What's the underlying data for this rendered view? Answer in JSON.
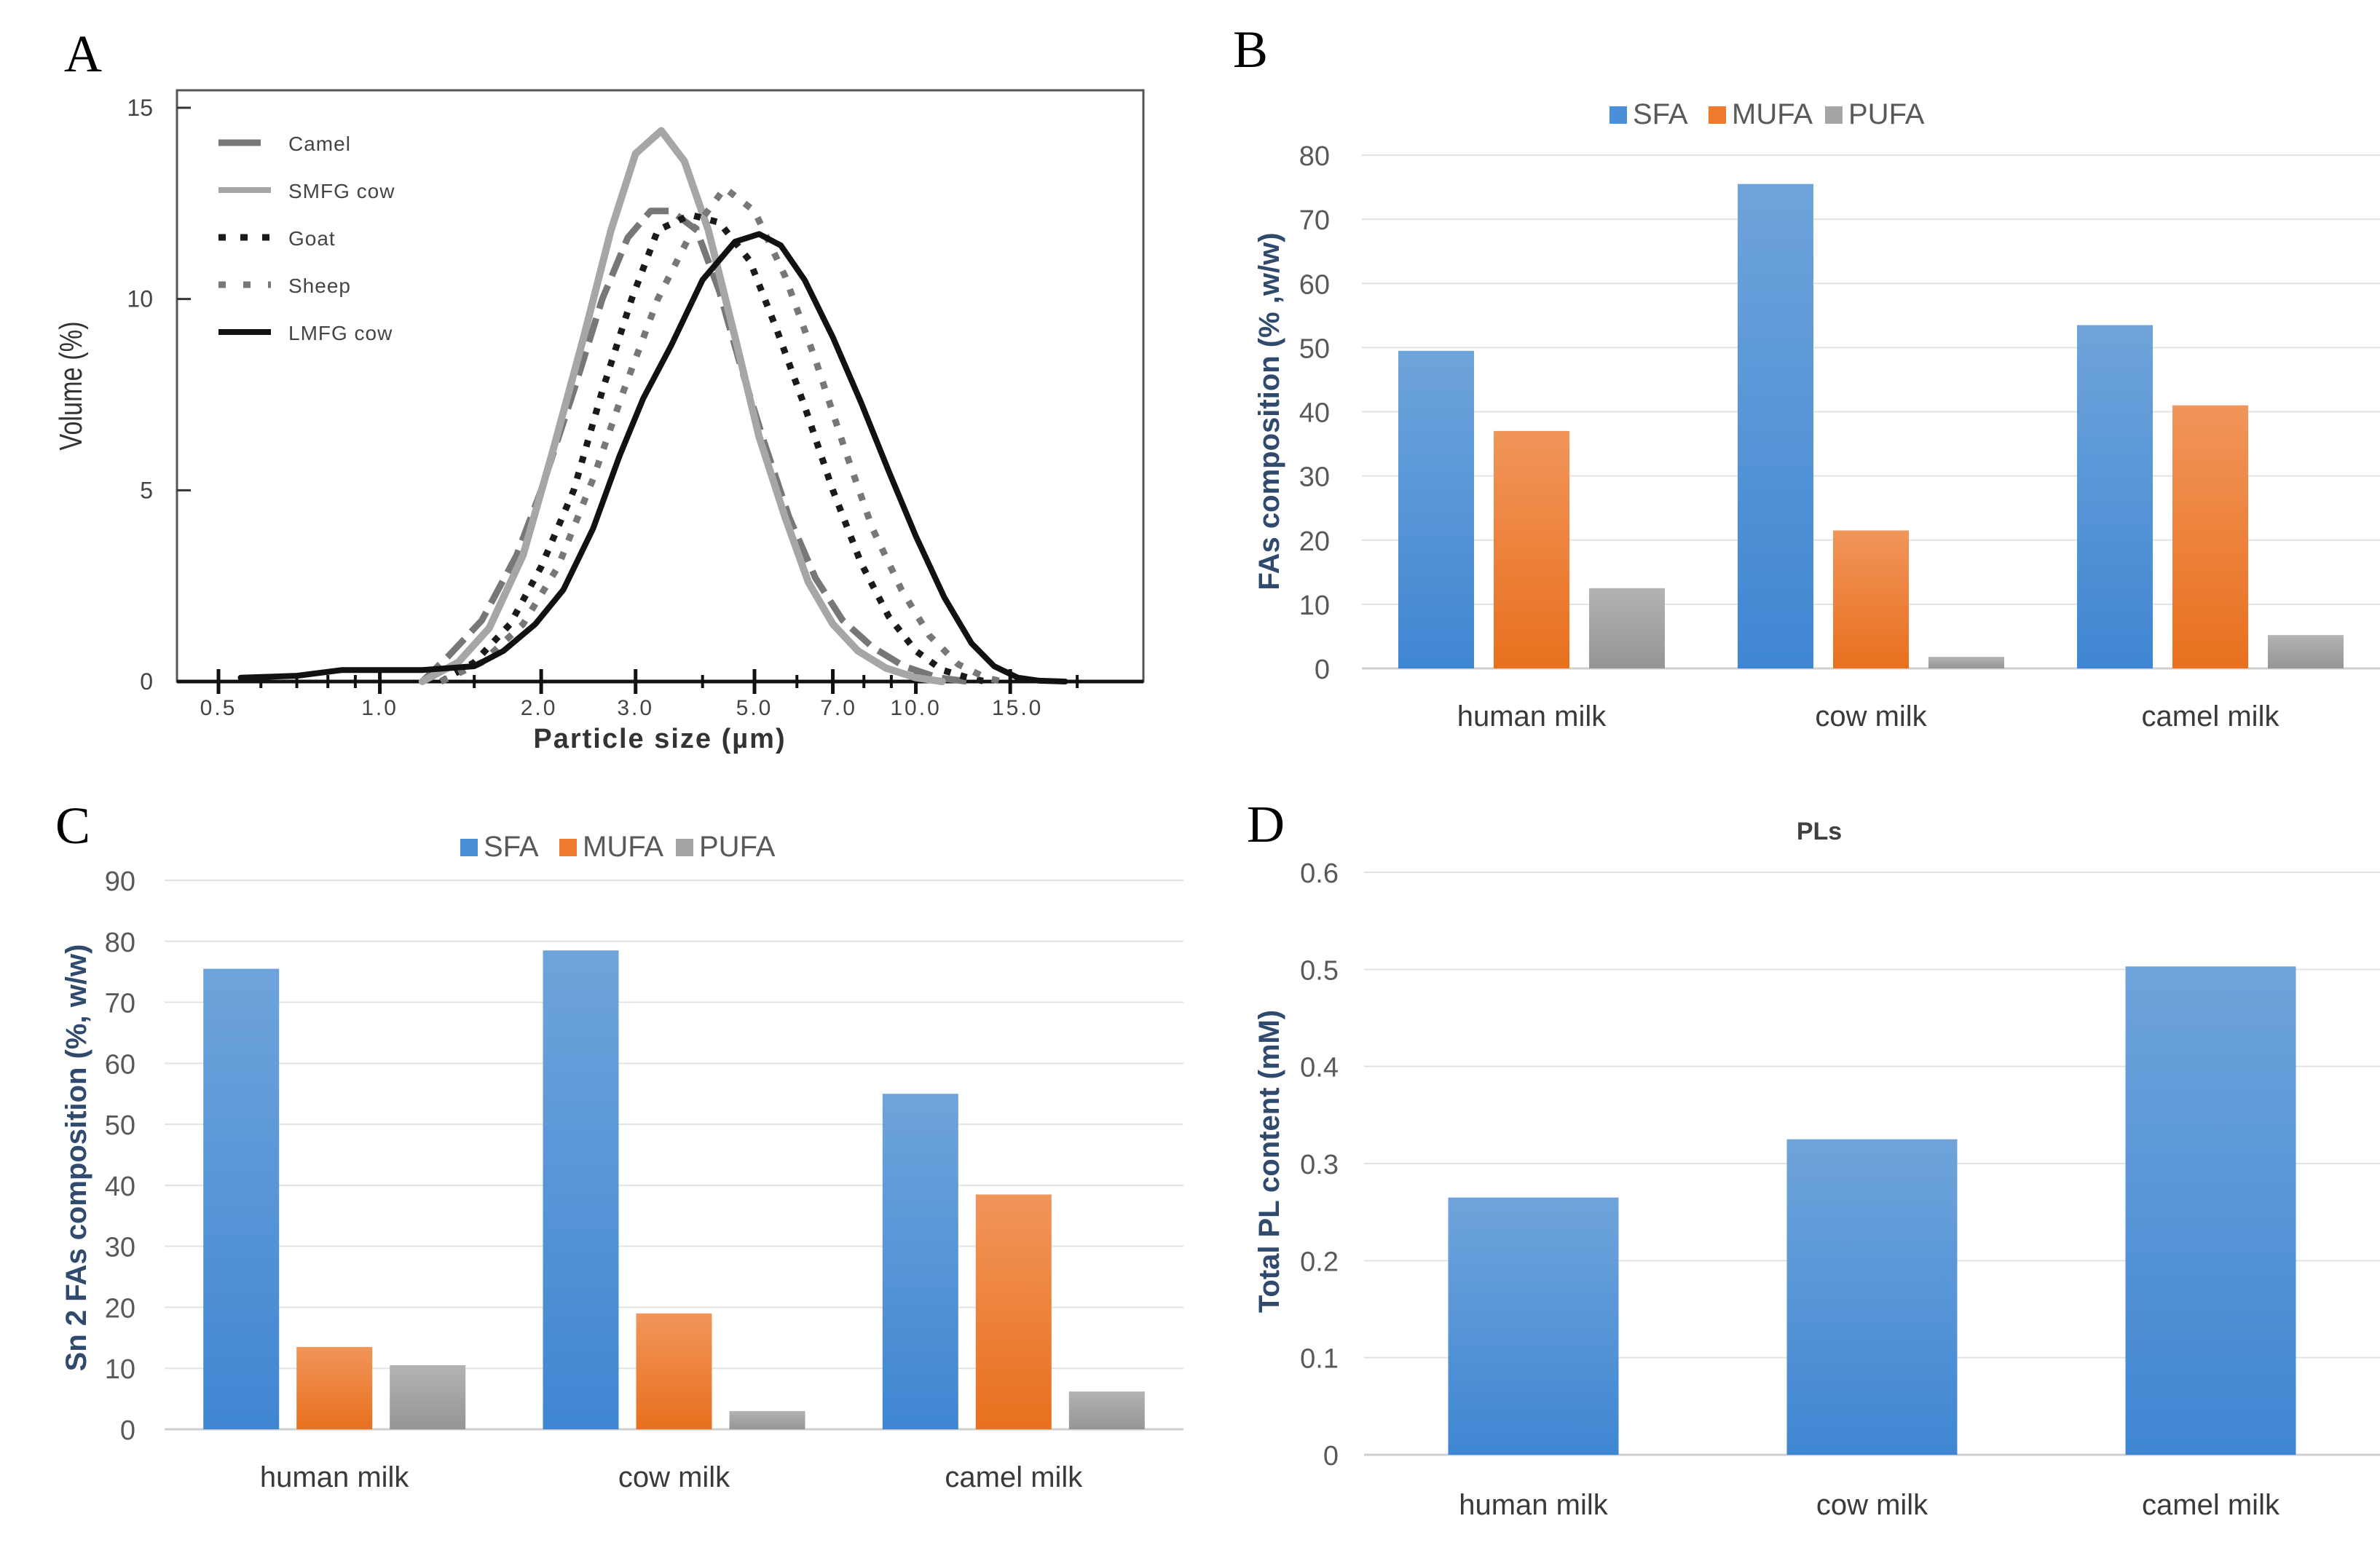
{
  "panels": {
    "A": "A",
    "B": "B",
    "C": "C",
    "D": "D"
  },
  "chart_data": [
    {
      "id": "A",
      "type": "line",
      "title": "",
      "xlabel": "Particle size (µm)",
      "ylabel": "Volume (%)",
      "xscale": "log",
      "xlim": [
        0.4,
        25
      ],
      "ylim": [
        0,
        15
      ],
      "xticks": [
        0.5,
        1.0,
        2.0,
        3.0,
        5.0,
        7.0,
        10.0,
        15.0
      ],
      "xtick_labels": [
        "0.5",
        "1.0",
        "2.0",
        "3.0",
        "5.0",
        "7.0",
        "10.0",
        "15.0"
      ],
      "yticks": [
        0,
        5,
        10,
        15
      ],
      "ytick_labels": [
        "0",
        "5",
        "10",
        "15"
      ],
      "legend_position": "top-left",
      "series": [
        {
          "name": "Camel",
          "color": "#777777",
          "style": "long-dash",
          "points": [
            [
              1.2,
              0
            ],
            [
              1.35,
              0.7
            ],
            [
              1.55,
              1.6
            ],
            [
              1.8,
              3.3
            ],
            [
              2.0,
              5.0
            ],
            [
              2.3,
              7.6
            ],
            [
              2.6,
              10.0
            ],
            [
              2.9,
              11.6
            ],
            [
              3.2,
              12.3
            ],
            [
              3.5,
              12.3
            ],
            [
              3.9,
              11.8
            ],
            [
              4.3,
              10.2
            ],
            [
              4.7,
              8.3
            ],
            [
              5.2,
              6.3
            ],
            [
              5.8,
              4.3
            ],
            [
              6.5,
              2.7
            ],
            [
              7.3,
              1.6
            ],
            [
              8.3,
              0.9
            ],
            [
              9.5,
              0.4
            ],
            [
              11,
              0.1
            ],
            [
              12.5,
              0
            ]
          ]
        },
        {
          "name": "SMFG cow",
          "color": "#a6a6a6",
          "style": "solid",
          "points": [
            [
              1.2,
              0
            ],
            [
              1.4,
              0.5
            ],
            [
              1.6,
              1.4
            ],
            [
              1.85,
              3.3
            ],
            [
              2.1,
              6.0
            ],
            [
              2.4,
              9.0
            ],
            [
              2.7,
              11.8
            ],
            [
              3.0,
              13.8
            ],
            [
              3.35,
              14.4
            ],
            [
              3.7,
              13.6
            ],
            [
              4.1,
              11.8
            ],
            [
              4.6,
              9.0
            ],
            [
              5.1,
              6.4
            ],
            [
              5.7,
              4.3
            ],
            [
              6.3,
              2.6
            ],
            [
              7.0,
              1.5
            ],
            [
              7.8,
              0.8
            ],
            [
              8.8,
              0.35
            ],
            [
              10,
              0.1
            ],
            [
              11.2,
              0
            ]
          ]
        },
        {
          "name": "Goat",
          "color": "#1a1a1a",
          "style": "dotted",
          "points": [
            [
              1.3,
              0
            ],
            [
              1.5,
              0.5
            ],
            [
              1.75,
              1.5
            ],
            [
              2.0,
              3.0
            ],
            [
              2.3,
              5.0
            ],
            [
              2.6,
              7.6
            ],
            [
              2.95,
              10.0
            ],
            [
              3.3,
              11.8
            ],
            [
              3.8,
              12.2
            ],
            [
              4.3,
              12.0
            ],
            [
              4.9,
              11.0
            ],
            [
              5.5,
              9.2
            ],
            [
              6.2,
              7.2
            ],
            [
              7.0,
              5.0
            ],
            [
              7.9,
              3.1
            ],
            [
              8.9,
              1.7
            ],
            [
              10,
              0.8
            ],
            [
              11.2,
              0.3
            ],
            [
              12.5,
              0.1
            ],
            [
              13.5,
              0
            ]
          ]
        },
        {
          "name": "Sheep",
          "color": "#777777",
          "style": "square-dot",
          "points": [
            [
              1.3,
              0
            ],
            [
              1.55,
              0.5
            ],
            [
              1.85,
              1.5
            ],
            [
              2.15,
              3.0
            ],
            [
              2.5,
              5.3
            ],
            [
              2.85,
              7.6
            ],
            [
              3.3,
              10.0
            ],
            [
              3.8,
              11.7
            ],
            [
              4.4,
              12.9
            ],
            [
              5.0,
              12.3
            ],
            [
              5.7,
              10.6
            ],
            [
              6.5,
              8.4
            ],
            [
              7.4,
              6.0
            ],
            [
              8.3,
              4.0
            ],
            [
              9.4,
              2.4
            ],
            [
              10.6,
              1.2
            ],
            [
              12,
              0.45
            ],
            [
              13.5,
              0.1
            ],
            [
              14.5,
              0
            ]
          ]
        },
        {
          "name": "LMFG cow",
          "color": "#111111",
          "style": "solid",
          "points": [
            [
              0.55,
              0.1
            ],
            [
              0.7,
              0.15
            ],
            [
              0.85,
              0.3
            ],
            [
              1.0,
              0.3
            ],
            [
              1.2,
              0.3
            ],
            [
              1.5,
              0.4
            ],
            [
              1.7,
              0.8
            ],
            [
              1.95,
              1.5
            ],
            [
              2.2,
              2.4
            ],
            [
              2.5,
              4.0
            ],
            [
              2.8,
              5.9
            ],
            [
              3.1,
              7.4
            ],
            [
              3.5,
              8.8
            ],
            [
              4.0,
              10.5
            ],
            [
              4.6,
              11.5
            ],
            [
              5.1,
              11.7
            ],
            [
              5.6,
              11.4
            ],
            [
              6.2,
              10.5
            ],
            [
              7.0,
              9.0
            ],
            [
              7.9,
              7.3
            ],
            [
              8.9,
              5.5
            ],
            [
              10,
              3.8
            ],
            [
              11.3,
              2.2
            ],
            [
              12.7,
              1.0
            ],
            [
              14.0,
              0.4
            ],
            [
              15.5,
              0.1
            ],
            [
              17,
              0.02
            ],
            [
              19,
              0
            ]
          ]
        }
      ]
    },
    {
      "id": "B",
      "type": "bar",
      "title": "",
      "xlabel": "",
      "ylabel": "FAs composition (% ,w/w)",
      "ylim": [
        0,
        80
      ],
      "yticks": [
        0,
        10,
        20,
        30,
        40,
        50,
        60,
        70,
        80
      ],
      "legend_position": "top-center",
      "categories": [
        "human milk",
        "cow milk",
        "camel milk"
      ],
      "series": [
        {
          "name": "SFA",
          "color": "#4a8fd8",
          "values": [
            49.5,
            75.5,
            53.5
          ]
        },
        {
          "name": "MUFA",
          "color": "#ef7b2e",
          "values": [
            37,
            21.5,
            41
          ]
        },
        {
          "name": "PUFA",
          "color": "#a5a5a5",
          "values": [
            12.5,
            1.8,
            5.2
          ]
        }
      ]
    },
    {
      "id": "C",
      "type": "bar",
      "title": "",
      "xlabel": "",
      "ylabel": "Sn 2 FAs composition (%, w/w)",
      "ylim": [
        0,
        90
      ],
      "yticks": [
        0,
        10,
        20,
        30,
        40,
        50,
        60,
        70,
        80,
        90
      ],
      "legend_position": "top-center",
      "categories": [
        "human milk",
        "cow milk",
        "camel milk"
      ],
      "series": [
        {
          "name": "SFA",
          "color": "#4a8fd8",
          "values": [
            75.5,
            78.5,
            55
          ]
        },
        {
          "name": "MUFA",
          "color": "#ef7b2e",
          "values": [
            13.5,
            19,
            38.5
          ]
        },
        {
          "name": "PUFA",
          "color": "#a5a5a5",
          "values": [
            10.5,
            3,
            6.2
          ]
        }
      ]
    },
    {
      "id": "D",
      "type": "bar",
      "title": "PLs",
      "xlabel": "",
      "ylabel": "Total PL content (mM)",
      "ylim": [
        0,
        0.6
      ],
      "yticks": [
        0,
        0.1,
        0.2,
        0.3,
        0.4,
        0.5,
        0.6
      ],
      "ytick_labels": [
        "0",
        "0.1",
        "0.2",
        "0.3",
        "0.4",
        "0.5",
        "0.6"
      ],
      "legend_position": "none",
      "categories": [
        "human milk",
        "cow milk",
        "camel milk"
      ],
      "series": [
        {
          "name": "PLs",
          "color": "#4a8fd8",
          "values": [
            0.265,
            0.325,
            0.503
          ]
        }
      ]
    }
  ]
}
